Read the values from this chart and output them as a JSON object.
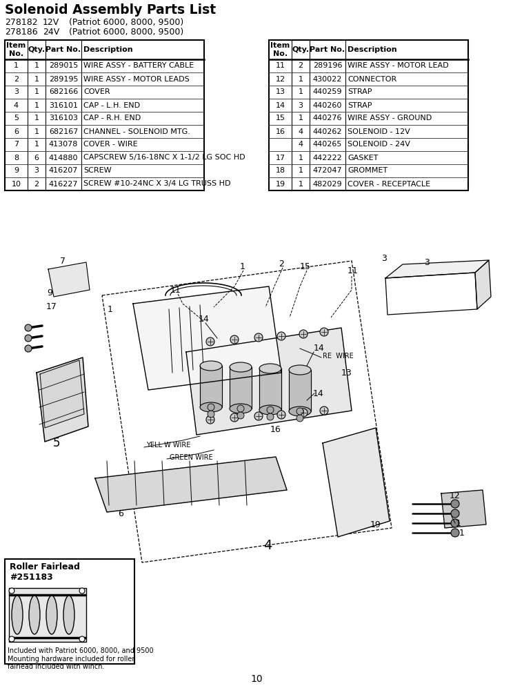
{
  "title": "Solenoid Assembly Parts List",
  "sub1_num": "278182",
  "sub1_volt": "12V",
  "sub1_model": "(Patriot 6000, 8000, 9500)",
  "sub2_num": "278186",
  "sub2_volt": "24V",
  "sub2_model": "(Patriot 6000, 8000, 9500)",
  "table_left_rows": [
    [
      "1",
      "1",
      "289015",
      "WIRE ASSY - BATTERY CABLE"
    ],
    [
      "2",
      "1",
      "289195",
      "WIRE ASSY - MOTOR LEADS"
    ],
    [
      "3",
      "1",
      "682166",
      "COVER"
    ],
    [
      "4",
      "1",
      "316101",
      "CAP - L.H. END"
    ],
    [
      "5",
      "1",
      "316103",
      "CAP - R.H. END"
    ],
    [
      "6",
      "1",
      "682167",
      "CHANNEL - SOLENOID MTG."
    ],
    [
      "7",
      "1",
      "413078",
      "COVER - WIRE"
    ],
    [
      "8",
      "6",
      "414880",
      "CAPSCREW 5/16-18NC X 1-1/2 LG SOC HD"
    ],
    [
      "9",
      "3",
      "416207",
      "SCREW"
    ],
    [
      "10",
      "2",
      "416227",
      "SCREW #10-24NC X 3/4 LG TRUSS HD"
    ]
  ],
  "table_right_rows": [
    [
      "11",
      "2",
      "289196",
      "WIRE ASSY - MOTOR LEAD"
    ],
    [
      "12",
      "1",
      "430022",
      "CONNECTOR"
    ],
    [
      "13",
      "1",
      "440259",
      "STRAP"
    ],
    [
      "14",
      "3",
      "440260",
      "STRAP"
    ],
    [
      "15",
      "1",
      "440276",
      "WIRE ASSY - GROUND"
    ],
    [
      "16",
      "4",
      "440262",
      "SOLENOID - 12V"
    ],
    [
      "",
      "4",
      "440265",
      "SOLENOID - 24V"
    ],
    [
      "17",
      "1",
      "442222",
      "GASKET"
    ],
    [
      "18",
      "1",
      "472047",
      "GROMMET"
    ],
    [
      "19",
      "1",
      "482029",
      "COVER - RECEPTACLE"
    ]
  ],
  "page_number": "10",
  "roller_fairlead_title": "Roller Fairlead\n#251183",
  "roller_fairlead_note": "Included with Patriot 6000, 8000, and 9500\nMounting hardware included for roller\nfairlead included with winch.",
  "bg_color": "#ffffff",
  "text_color": "#000000"
}
